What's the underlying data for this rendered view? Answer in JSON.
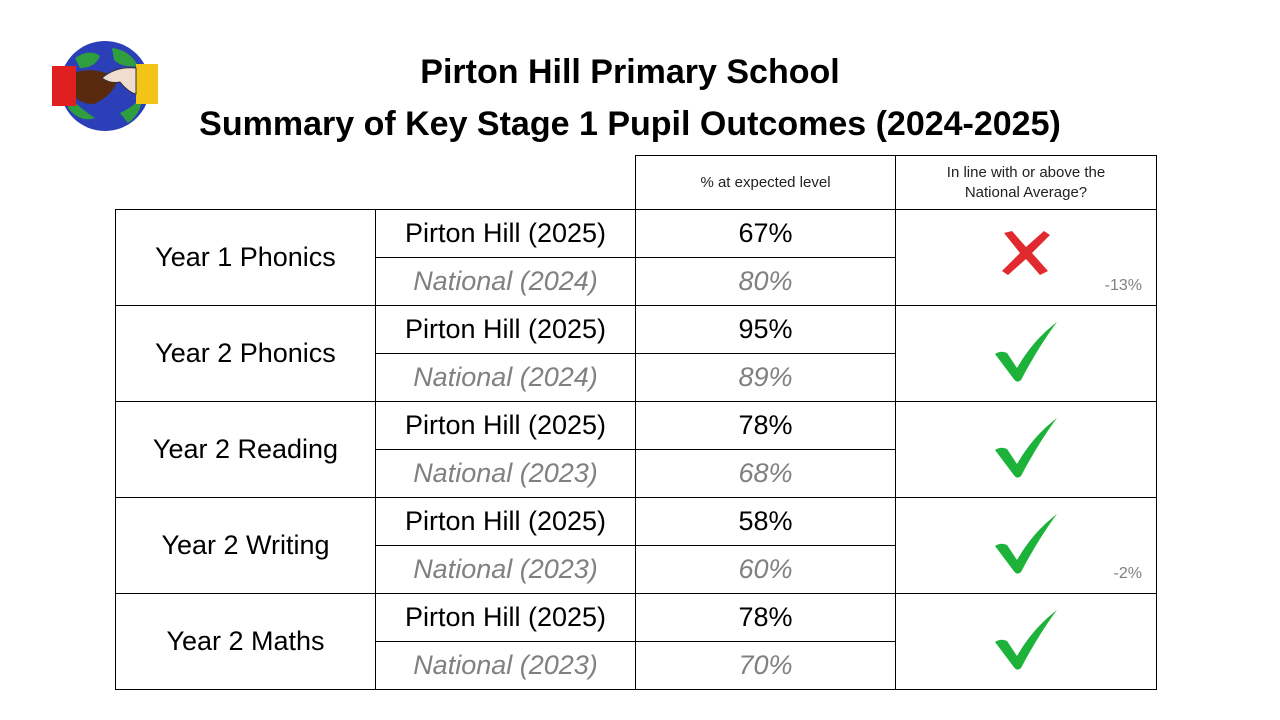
{
  "title_line1": "Pirton Hill Primary School",
  "title_line2": "Summary of Key Stage 1 Pupil Outcomes (2024-2025)",
  "headers": {
    "percent": "% at expected level",
    "comparison": "In line with or above the National Average?"
  },
  "colors": {
    "tick": "#1db33a",
    "cross": "#e02a2f",
    "national_text": "#808080"
  },
  "rows": [
    {
      "subject": "Year 1 Phonics",
      "school_label": "Pirton Hill (2025)",
      "school_value": "67%",
      "national_label": "National (2024)",
      "national_value": "80%",
      "result_icon": "cross-icon",
      "difference": "-13%"
    },
    {
      "subject": "Year 2 Phonics",
      "school_label": "Pirton Hill (2025)",
      "school_value": "95%",
      "national_label": "National (2024)",
      "national_value": "89%",
      "result_icon": "check-icon",
      "difference": null
    },
    {
      "subject": "Year 2 Reading",
      "school_label": "Pirton Hill (2025)",
      "school_value": "78%",
      "national_label": "National (2023)",
      "national_value": "68%",
      "result_icon": "check-icon",
      "difference": null
    },
    {
      "subject": "Year 2 Writing",
      "school_label": "Pirton Hill (2025)",
      "school_value": "58%",
      "national_label": "National (2023)",
      "national_value": "60%",
      "result_icon": "check-icon",
      "difference": "-2%"
    },
    {
      "subject": "Year 2 Maths",
      "school_label": "Pirton Hill (2025)",
      "school_value": "78%",
      "national_label": "National (2023)",
      "national_value": "70%",
      "result_icon": "check-icon",
      "difference": null
    }
  ]
}
